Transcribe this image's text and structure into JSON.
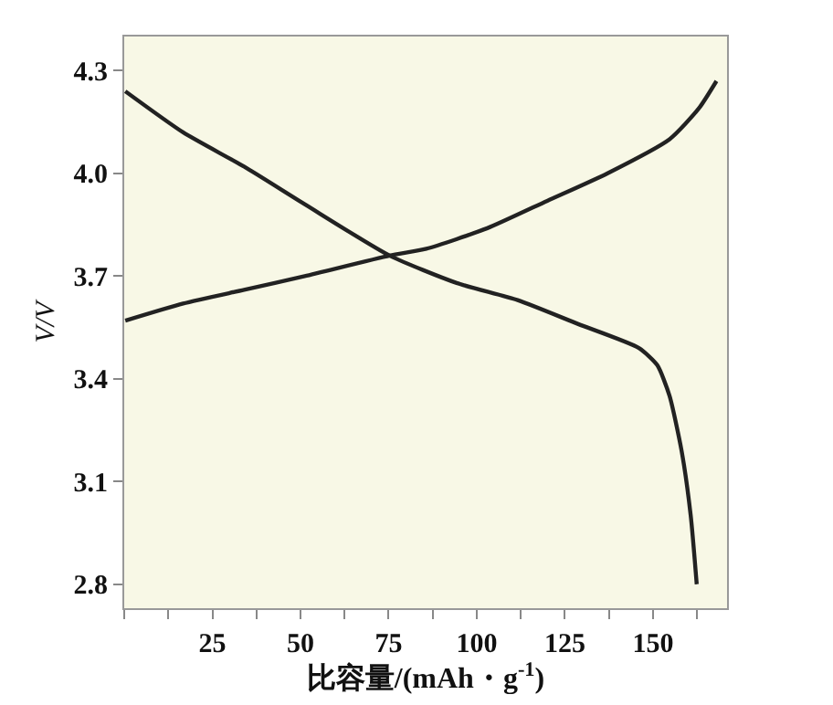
{
  "chart_data": {
    "type": "line",
    "xlabel": "比容量/(mAh・g$^{-1}$)",
    "ylabel": "V/V",
    "xlim": [
      0,
      171
    ],
    "ylim": [
      2.73,
      4.4
    ],
    "xticks": [
      {
        "value": 0,
        "label": null
      },
      {
        "value": 12.5,
        "label": null
      },
      25,
      {
        "value": 37.5,
        "label": null
      },
      50,
      {
        "value": 62.5,
        "label": null
      },
      75,
      {
        "value": 87.5,
        "label": null
      },
      100,
      {
        "value": 112.5,
        "label": null
      },
      125,
      {
        "value": 137.5,
        "label": null
      },
      150,
      {
        "value": 162.5,
        "label": null
      }
    ],
    "yticks": [
      2.8,
      3.1,
      3.4,
      3.7,
      {
        "value": 4,
        "label": "4.0"
      },
      4.3
    ],
    "grid": false,
    "marker": "none",
    "line_style": "solid",
    "series": [
      {
        "color": "#222222",
        "x": [
          0.3,
          16.7,
          34,
          51.2,
          75.3,
          85.7,
          103,
          120,
          137,
          154.7,
          163,
          168
        ],
        "values": [
          3.57,
          3.62,
          3.66,
          3.7,
          3.76,
          3.78,
          3.84,
          3.92,
          4.0,
          4.1,
          4.19,
          4.27
        ]
      },
      {
        "color": "#222222",
        "x": [
          0.3,
          16.7,
          34,
          51.2,
          75.3,
          94.3,
          111.6,
          128.8,
          146,
          151.2,
          154.7,
          158.1,
          160.7,
          162.4
        ],
        "values": [
          4.24,
          4.12,
          4.02,
          3.91,
          3.76,
          3.68,
          3.63,
          3.56,
          3.49,
          3.44,
          3.35,
          3.19,
          3.0,
          2.8
        ]
      }
    ]
  }
}
